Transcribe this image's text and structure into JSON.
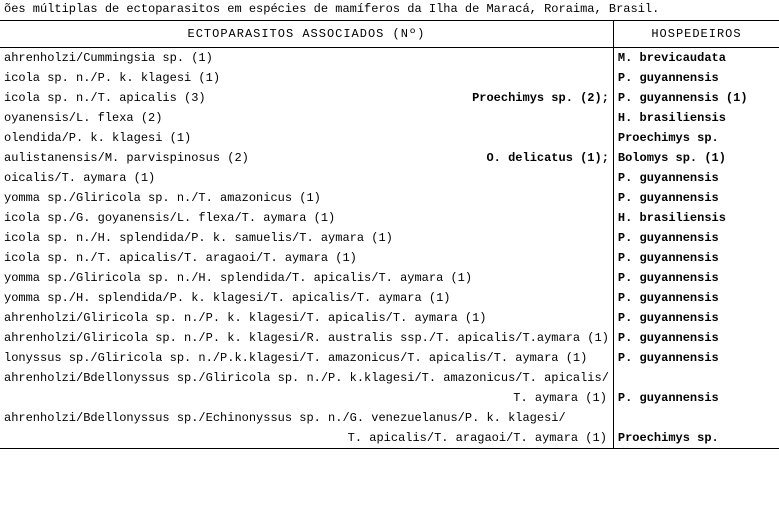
{
  "caption": "ões múltiplas de ectoparasitos em espécies de mamíferos da Ilha de Maracá, Roraima, Brasil.",
  "headers": {
    "ecto": "ECTOPARASITOS ASSOCIADOS   (Nº)",
    "host": "HOSPEDEIROS"
  },
  "rows": [
    {
      "ecto": "ahrenholzi/Cummingsia sp. (1)",
      "extra": "",
      "host": "M. brevicaudata"
    },
    {
      "ecto": "icola sp. n./P. k. klagesi (1)",
      "extra": "",
      "host": "P. guyannensis"
    },
    {
      "ecto": "icola sp. n./T. apicalis (3)",
      "extra": "Proechimys sp. (2);",
      "host": "P. guyannensis (1)"
    },
    {
      "ecto": "oyanensis/L. flexa (2)",
      "extra": "",
      "host": "H. brasiliensis"
    },
    {
      "ecto": "olendida/P. k. klagesi (1)",
      "extra": "",
      "host": "Proechimys sp."
    },
    {
      "ecto": "aulistanensis/M. parvispinosus (2)",
      "extra": "O. delicatus (1);",
      "host": "Bolomys sp. (1)"
    },
    {
      "ecto": "oicalis/T. aymara (1)",
      "extra": "",
      "host": "P. guyannensis"
    },
    {
      "ecto": "yomma sp./Gliricola sp. n./T. amazonicus (1)",
      "extra": "",
      "host": "P. guyannensis"
    },
    {
      "ecto": "icola sp./G. goyanensis/L. flexa/T. aymara (1)",
      "extra": "",
      "host": "H. brasiliensis"
    },
    {
      "ecto": "icola sp. n./H. splendida/P. k. samuelis/T. aymara (1)",
      "extra": "",
      "host": "P. guyannensis"
    },
    {
      "ecto": "icola sp. n./T. apicalis/T. aragaoi/T. aymara (1)",
      "extra": "",
      "host": "P. guyannensis"
    },
    {
      "ecto": "yomma sp./Gliricola sp. n./H. splendida/T. apicalis/T. aymara (1)",
      "extra": "",
      "host": "P. guyannensis"
    },
    {
      "ecto": "yomma sp./H. splendida/P. k. klagesi/T. apicalis/T. aymara (1)",
      "extra": "",
      "host": "P. guyannensis"
    },
    {
      "ecto": "ahrenholzi/Gliricola sp. n./P. k. klagesi/T. apicalis/T. aymara (1)",
      "extra": "",
      "host": "P. guyannensis"
    },
    {
      "ecto": "ahrenholzi/Gliricola sp. n./P. k. klagesi/R. australis ssp./T. apicalis/T.aymara (1)",
      "extra": "",
      "host": "P. guyannensis"
    },
    {
      "ecto": "lonyssus sp./Gliricola sp. n./P.k.klagesi/T. amazonicus/T. apicalis/T. aymara (1)",
      "extra": "",
      "host": "P. guyannensis"
    },
    {
      "ecto": "ahrenholzi/Bdellonyssus sp./Gliricola sp. n./P. k.klagesi/T. amazonicus/T. apicalis/",
      "extra": "",
      "host": "",
      "cont": "T. aymara (1)",
      "cont_host": "P. guyannensis"
    },
    {
      "ecto": "ahrenholzi/Bdellonyssus sp./Echinonyssus sp. n./G. venezuelanus/P. k. klagesi/",
      "extra": "",
      "host": "",
      "cont": "T. apicalis/T. aragaoi/T. aymara (1)",
      "cont_host": "Proechimys sp."
    }
  ]
}
